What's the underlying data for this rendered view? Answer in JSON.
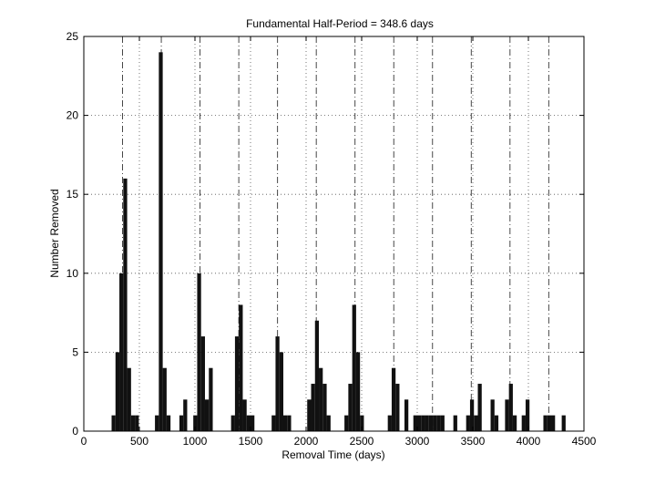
{
  "chart_data": {
    "type": "bar",
    "title": "Fundamental Half-Period = 348.6 days",
    "xlabel": "Removal Time (days)",
    "ylabel": "Number Removed",
    "xlim": [
      0,
      4500
    ],
    "ylim": [
      0,
      25
    ],
    "xticks": [
      0,
      500,
      1000,
      1500,
      2000,
      2500,
      3000,
      3500,
      4000,
      4500
    ],
    "yticks": [
      0,
      5,
      10,
      15,
      20,
      25
    ],
    "grid": true,
    "bin_width": 35,
    "period_markers": [
      348.6,
      697.2,
      1045.8,
      1394.4,
      1743.0,
      2091.6,
      2440.2,
      2788.8,
      3137.4,
      3486.0,
      3834.6,
      4183.2
    ],
    "bars": [
      {
        "x": 250,
        "y": 1
      },
      {
        "x": 285,
        "y": 5
      },
      {
        "x": 320,
        "y": 10
      },
      {
        "x": 355,
        "y": 16
      },
      {
        "x": 390,
        "y": 4
      },
      {
        "x": 425,
        "y": 1
      },
      {
        "x": 460,
        "y": 1
      },
      {
        "x": 640,
        "y": 1
      },
      {
        "x": 675,
        "y": 24
      },
      {
        "x": 710,
        "y": 4
      },
      {
        "x": 745,
        "y": 1
      },
      {
        "x": 860,
        "y": 1
      },
      {
        "x": 895,
        "y": 2
      },
      {
        "x": 985,
        "y": 1
      },
      {
        "x": 1020,
        "y": 10
      },
      {
        "x": 1055,
        "y": 6
      },
      {
        "x": 1090,
        "y": 2
      },
      {
        "x": 1125,
        "y": 4
      },
      {
        "x": 1325,
        "y": 1
      },
      {
        "x": 1360,
        "y": 6
      },
      {
        "x": 1395,
        "y": 8
      },
      {
        "x": 1430,
        "y": 2
      },
      {
        "x": 1465,
        "y": 1
      },
      {
        "x": 1500,
        "y": 1
      },
      {
        "x": 1690,
        "y": 1
      },
      {
        "x": 1725,
        "y": 6
      },
      {
        "x": 1760,
        "y": 5
      },
      {
        "x": 1795,
        "y": 1
      },
      {
        "x": 1830,
        "y": 1
      },
      {
        "x": 2010,
        "y": 2
      },
      {
        "x": 2045,
        "y": 3
      },
      {
        "x": 2080,
        "y": 7
      },
      {
        "x": 2115,
        "y": 4
      },
      {
        "x": 2150,
        "y": 3
      },
      {
        "x": 2185,
        "y": 1
      },
      {
        "x": 2345,
        "y": 1
      },
      {
        "x": 2380,
        "y": 3
      },
      {
        "x": 2415,
        "y": 8
      },
      {
        "x": 2450,
        "y": 5
      },
      {
        "x": 2485,
        "y": 1
      },
      {
        "x": 2735,
        "y": 1
      },
      {
        "x": 2770,
        "y": 4
      },
      {
        "x": 2805,
        "y": 3
      },
      {
        "x": 2885,
        "y": 2
      },
      {
        "x": 2965,
        "y": 1
      },
      {
        "x": 3000,
        "y": 1
      },
      {
        "x": 3035,
        "y": 1
      },
      {
        "x": 3070,
        "y": 1
      },
      {
        "x": 3105,
        "y": 1
      },
      {
        "x": 3140,
        "y": 1
      },
      {
        "x": 3175,
        "y": 1
      },
      {
        "x": 3210,
        "y": 1
      },
      {
        "x": 3325,
        "y": 1
      },
      {
        "x": 3440,
        "y": 1
      },
      {
        "x": 3475,
        "y": 2
      },
      {
        "x": 3510,
        "y": 1
      },
      {
        "x": 3545,
        "y": 3
      },
      {
        "x": 3660,
        "y": 2
      },
      {
        "x": 3695,
        "y": 1
      },
      {
        "x": 3790,
        "y": 2
      },
      {
        "x": 3825,
        "y": 3
      },
      {
        "x": 3860,
        "y": 1
      },
      {
        "x": 3940,
        "y": 1
      },
      {
        "x": 3975,
        "y": 2
      },
      {
        "x": 4135,
        "y": 1
      },
      {
        "x": 4170,
        "y": 1
      },
      {
        "x": 4205,
        "y": 1
      },
      {
        "x": 4300,
        "y": 1
      }
    ]
  }
}
